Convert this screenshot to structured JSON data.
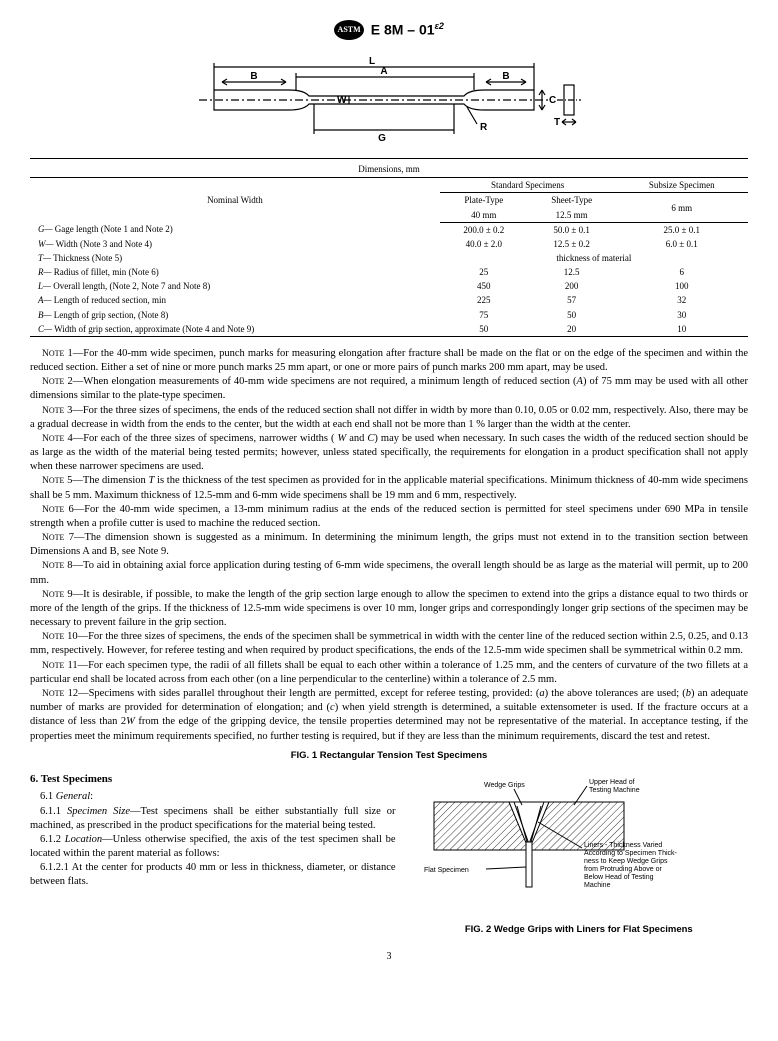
{
  "header": {
    "logo_text": "ASTM",
    "doc_code": "E 8M – 01",
    "doc_sup": "ε2"
  },
  "diagram": {
    "labels": {
      "L": "L",
      "A": "A",
      "B": "B",
      "W": "W",
      "C": "C",
      "T": "T",
      "G": "G",
      "R": "R"
    }
  },
  "dim_table": {
    "caption": "Dimensions, mm",
    "h_nom": "Nominal Width",
    "h_std": "Standard Specimens",
    "h_sub": "Subsize Specimen",
    "h_plate1": "Plate-Type",
    "h_plate2": "40 mm",
    "h_sheet1": "Sheet-Type",
    "h_sheet2": "12.5 mm",
    "h_subw": "6 mm",
    "rows": [
      {
        "k": "G—",
        "label": "Gage length (Note 1 and Note 2)",
        "a": "200.0 ± 0.2",
        "b": "50.0 ± 0.1",
        "c": "25.0 ± 0.1"
      },
      {
        "k": "W—",
        "label": "Width (Note 3 and Note 4)",
        "a": "40.0 ± 2.0",
        "b": "12.5 ± 0.2",
        "c": "6.0 ± 0.1"
      },
      {
        "k": "T—",
        "label": "Thickness (Note 5)",
        "a": "",
        "b": "thickness of material",
        "c": ""
      },
      {
        "k": "R—",
        "label": "Radius of fillet, min (Note 6)",
        "a": "25",
        "b": "12.5",
        "c": "6"
      },
      {
        "k": "L—",
        "label": "Overall length, (Note 2, Note 7 and Note 8)",
        "a": "450",
        "b": "200",
        "c": "100"
      },
      {
        "k": "A—",
        "label": "Length of reduced section, min",
        "a": "225",
        "b": "57",
        "c": "32"
      },
      {
        "k": "B—",
        "label": "Length of grip section, (Note 8)",
        "a": "75",
        "b": "50",
        "c": "30"
      },
      {
        "k": "C—",
        "label": "Width of grip section, approximate (Note 4 and Note 9)",
        "a": "50",
        "b": "20",
        "c": "10"
      }
    ]
  },
  "notes": [
    "1—For the 40-mm wide specimen, punch marks for measuring elongation after fracture shall be made on the flat or on the edge of the specimen and within the reduced section. Either a set of nine or more punch marks 25 mm apart, or one or more pairs of punch marks 200 mm apart, may be used.",
    "2—When elongation measurements of 40-mm wide specimens are not required, a minimum length of reduced section (A) of 75 mm may be used with all other dimensions similar to the plate-type specimen.",
    "3—For the three sizes of specimens, the ends of the reduced section shall not differ in width by more than 0.10, 0.05 or 0.02 mm, respectively. Also, there may be a gradual decrease in width from the ends to the center, but the width at each end shall not be more than 1 % larger than the width at the center.",
    "4—For each of the three sizes of specimens, narrower widths ( W and C) may be used when necessary. In such cases the width of the reduced section should be as large as the width of the material being tested permits; however, unless stated specifically, the requirements for elongation in a product specification shall not apply when these narrower specimens are used.",
    "5—The dimension T is the thickness of the test specimen as provided for in the applicable material specifications. Minimum thickness of 40-mm wide specimens shall be 5 mm. Maximum thickness of 12.5-mm and 6-mm wide specimens shall be 19 mm and 6 mm, respectively.",
    "6—For the 40-mm wide specimen, a 13-mm minimum radius at the ends of the reduced section is permitted for steel specimens under 690 MPa in tensile strength when a profile cutter is used to machine the reduced section.",
    "7—The dimension shown is suggested as a minimum. In determining the minimum length, the grips must not extend in to the transition section between Dimensions A and B, see Note 9.",
    "8—To aid in obtaining axial force application during testing of 6-mm wide specimens, the overall length should be as large as the material will permit, up to 200 mm.",
    "9—It is desirable, if possible, to make the length of the grip section large enough to allow the specimen to extend into the grips a distance equal to two thirds or more of the length of the grips. If the thickness of 12.5-mm wide specimens is over 10 mm, longer grips and correspondingly longer grip sections of the specimen may be necessary to prevent failure in the grip section.",
    "10—For the three sizes of specimens, the ends of the specimen shall be symmetrical in width with the center line of the reduced section within 2.5, 0.25, and 0.13 mm, respectively. However, for referee testing and when required by product specifications, the ends of the 12.5-mm wide specimen shall be symmetrical within 0.2 mm.",
    "11—For each specimen type, the radii of all fillets shall be equal to each other within a tolerance of 1.25 mm, and the centers of curvature of the two fillets at a particular end shall be located across from each other (on a line perpendicular to the centerline) within a tolerance of 2.5 mm.",
    "12—Specimens with sides parallel throughout their length are permitted, except for referee testing, provided: (a) the above tolerances are used; (b) an adequate number of marks are provided for determination of elongation; and (c) when yield strength is determined, a suitable extensometer is used. If the fracture occurs at a distance of less than 2W from the edge of the gripping device, the tensile properties determined may not be representative of the material. In acceptance testing, if the properties meet the minimum requirements specified, no further testing is required, but if they are less than the minimum requirements, discard the test and retest."
  ],
  "fig1_caption": "FIG. 1 Rectangular Tension Test Specimens",
  "section6": {
    "title": "6.  Test Specimens",
    "p1_num": "6.1 ",
    "p1_label": "General",
    "p2_num": "6.1.1 ",
    "p2_label": "Specimen Size",
    "p2_text": "—Test specimens shall be either substantially full size or machined, as prescribed in the product specifications for the material being tested.",
    "p3_num": "6.1.2 ",
    "p3_label": "Location",
    "p3_text": "—Unless otherwise specified, the axis of the test specimen shall be located within the parent material as follows:",
    "p4_num": "6.1.2.1 ",
    "p4_text": "At the center for products 40 mm or less in thickness, diameter, or distance between flats."
  },
  "fig2": {
    "label_wedge": "Wedge Grips",
    "label_upper": "Upper Head of Testing Machine",
    "label_liners": "Liners - Thickness Varied According to Specimen Thickness to Keep Wedge Grips from Protruding Above or Below Head of Testing Machine",
    "label_flat": "Flat Specimen",
    "caption": "FIG. 2 Wedge Grips with Liners for Flat Specimens"
  },
  "page_num": "3"
}
